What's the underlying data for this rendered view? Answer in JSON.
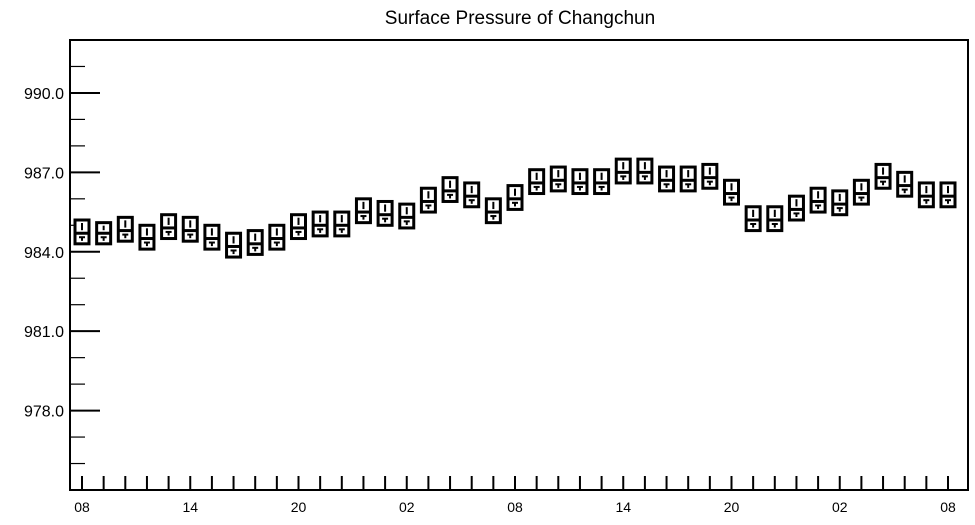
{
  "chart_data": {
    "type": "box",
    "title": "Surface Pressure of Changchun",
    "xlabel": "",
    "ylabel": "",
    "ylim": [
      975.0,
      992.0
    ],
    "yticks": [
      978.0,
      981.0,
      984.0,
      987.0,
      990.0
    ],
    "ytick_labels": [
      "978.0",
      "981.0",
      "984.0",
      "987.0",
      "990.0"
    ],
    "x_index_range": [
      0,
      80
    ],
    "xtick_positions": [
      0,
      10,
      20,
      30,
      40,
      50,
      60,
      70,
      80
    ],
    "xtick_labels": [
      "08",
      "14",
      "20",
      "02",
      "08",
      "14",
      "20",
      "02",
      "08"
    ],
    "grid": false,
    "series": [
      {
        "x": [
          0,
          2,
          4,
          6,
          8,
          10,
          12,
          14,
          16,
          18,
          20,
          22,
          24,
          26,
          28,
          30,
          32,
          34,
          36,
          38,
          40,
          42,
          44,
          46,
          48,
          50,
          52,
          54,
          56,
          58,
          60,
          62,
          64,
          66,
          68,
          70,
          72,
          74,
          76,
          78,
          80
        ],
        "values": [
          984.7,
          984.7,
          984.8,
          984.5,
          984.9,
          984.8,
          984.5,
          984.2,
          984.3,
          984.5,
          984.9,
          985.0,
          985.0,
          985.5,
          985.4,
          985.3,
          985.9,
          986.3,
          986.1,
          985.5,
          986.0,
          986.6,
          986.7,
          986.6,
          986.6,
          987.0,
          987.0,
          986.7,
          986.7,
          986.8,
          986.2,
          985.2,
          985.2,
          985.6,
          985.9,
          985.8,
          986.2,
          986.8,
          986.5,
          986.1,
          986.1
        ],
        "highs": [
          985.2,
          985.1,
          985.3,
          985.0,
          985.4,
          985.3,
          985.0,
          984.7,
          984.8,
          985.0,
          985.4,
          985.5,
          985.5,
          986.0,
          985.9,
          985.8,
          986.4,
          986.8,
          986.6,
          986.0,
          986.5,
          987.1,
          987.2,
          987.1,
          987.1,
          987.5,
          987.5,
          987.2,
          987.2,
          987.3,
          986.7,
          985.7,
          985.7,
          986.1,
          986.4,
          986.3,
          986.7,
          987.3,
          987.0,
          986.6,
          986.6
        ],
        "lows": [
          984.3,
          984.3,
          984.4,
          984.1,
          984.5,
          984.4,
          984.1,
          983.8,
          983.9,
          984.1,
          984.5,
          984.6,
          984.6,
          985.1,
          985.0,
          984.9,
          985.5,
          985.9,
          985.7,
          985.1,
          985.6,
          986.2,
          986.3,
          986.2,
          986.2,
          986.6,
          986.6,
          986.3,
          986.3,
          986.4,
          985.8,
          984.8,
          984.8,
          985.2,
          985.5,
          985.4,
          985.8,
          986.4,
          986.1,
          985.7,
          985.7
        ]
      }
    ]
  }
}
